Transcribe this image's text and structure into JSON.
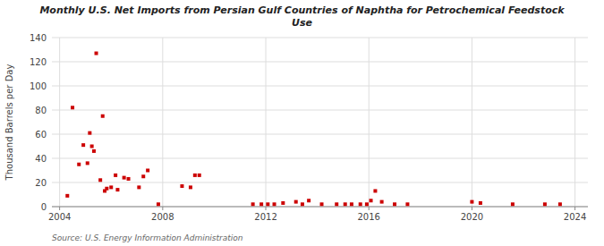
{
  "chart_data": {
    "type": "scatter",
    "title": "Monthly U.S. Net Imports from Persian Gulf Countries of Naphtha for Petrochemical Feedstock\nUse",
    "ylabel": "Thousand Barrels per Day",
    "source": "Source: U.S. Energy Information Administration",
    "color": "#cc0000",
    "marker": "square",
    "grid": true,
    "xlim": [
      2003.7,
      2024.5
    ],
    "ylim": [
      0,
      140
    ],
    "xticks": [
      2004,
      2008,
      2012,
      2016,
      2020,
      2024
    ],
    "yticks": [
      0,
      20,
      40,
      60,
      80,
      100,
      120,
      140
    ],
    "x": [
      2004.3,
      2004.5,
      2004.75,
      2004.92,
      2005.08,
      2005.17,
      2005.25,
      2005.33,
      2005.42,
      2005.58,
      2005.67,
      2005.75,
      2005.83,
      2006.0,
      2006.17,
      2006.25,
      2006.5,
      2006.67,
      2007.08,
      2007.25,
      2007.42,
      2007.83,
      2008.75,
      2009.08,
      2009.25,
      2009.42,
      2011.5,
      2011.83,
      2012.08,
      2012.33,
      2012.67,
      2013.17,
      2013.42,
      2013.67,
      2014.17,
      2014.75,
      2015.08,
      2015.33,
      2015.67,
      2015.92,
      2016.08,
      2016.25,
      2016.5,
      2017.0,
      2017.5,
      2020.0,
      2020.33,
      2021.58,
      2022.83,
      2023.42
    ],
    "values": [
      9,
      82,
      35,
      51,
      36,
      61,
      50,
      46,
      127,
      22,
      75,
      13,
      15,
      16,
      26,
      14,
      24,
      23,
      16,
      25,
      30,
      2,
      17,
      16,
      26,
      26,
      2,
      2,
      2,
      2,
      3,
      4,
      2,
      5,
      2,
      2,
      2,
      2,
      2,
      2,
      5,
      13,
      4,
      2,
      2,
      4,
      3,
      2,
      2,
      2
    ]
  }
}
